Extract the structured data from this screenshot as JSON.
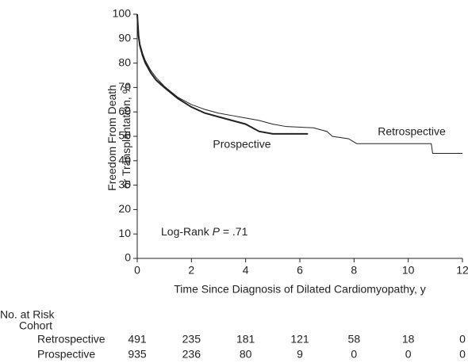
{
  "chart_data": {
    "type": "line",
    "x_label": "Time Since Diagnosis of Dilated Cardiomyopathy, y",
    "y_label": [
      "Freedom From Death",
      "or Transplantation, %"
    ],
    "annotation": {
      "prefix": "Log-Rank",
      "italic": "P",
      "suffix": "= .71"
    },
    "xlim": [
      0,
      12
    ],
    "xticks": [
      0,
      2,
      4,
      6,
      8,
      10,
      12
    ],
    "ylim": [
      0,
      100
    ],
    "yticks": [
      0,
      10,
      20,
      30,
      40,
      50,
      60,
      70,
      80,
      90,
      100
    ],
    "series": [
      {
        "name": "Retrospective",
        "color": "#222222",
        "x": [
          0,
          0.05,
          0.1,
          0.2,
          0.3,
          0.5,
          0.7,
          1.0,
          1.5,
          2.0,
          2.5,
          3.0,
          3.5,
          4.0,
          4.5,
          5.0,
          5.5,
          6.5,
          7.0,
          7.2,
          7.8,
          8.1,
          10.85,
          10.9,
          12.0
        ],
        "values": [
          100,
          92,
          88,
          84,
          81,
          77,
          74,
          70.5,
          66,
          63,
          61,
          59.5,
          58.5,
          57.5,
          56.5,
          55,
          54,
          53.5,
          52,
          50,
          49,
          47,
          47,
          43,
          43
        ]
      },
      {
        "name": "Prospective",
        "color": "#222222",
        "x": [
          0,
          0.05,
          0.1,
          0.2,
          0.3,
          0.5,
          0.7,
          1.0,
          1.5,
          2.0,
          2.5,
          3.0,
          3.5,
          4.0,
          4.5,
          5.0,
          6.3
        ],
        "values": [
          100,
          91,
          87,
          83,
          80,
          76,
          73,
          70,
          65.5,
          62,
          59.5,
          58,
          56.5,
          55,
          52,
          51,
          51
        ]
      }
    ],
    "risk_table": {
      "title": "No. at Risk",
      "header": "Cohort",
      "rows": [
        {
          "name": "Retrospective",
          "values": [
            491,
            235,
            181,
            121,
            58,
            18,
            0
          ]
        },
        {
          "name": "Prospective",
          "values": [
            935,
            236,
            80,
            9,
            0,
            0,
            0
          ]
        }
      ]
    }
  }
}
